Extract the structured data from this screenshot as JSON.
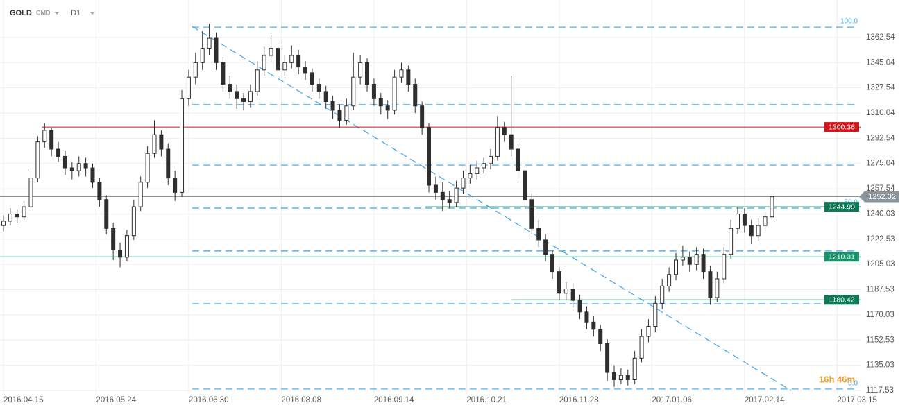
{
  "header": {
    "symbol": "GOLD",
    "market": "CMD",
    "timeframe": "D1"
  },
  "chart_data": {
    "type": "candlestick",
    "candles": [
      [
        1232,
        1239,
        1228,
        1235
      ],
      [
        1235,
        1244,
        1232,
        1240
      ],
      [
        1240,
        1243,
        1234,
        1238
      ],
      [
        1238,
        1249,
        1236,
        1245
      ],
      [
        1245,
        1270,
        1243,
        1265
      ],
      [
        1265,
        1294,
        1262,
        1290
      ],
      [
        1290,
        1303,
        1286,
        1298
      ],
      [
        1298,
        1300,
        1280,
        1285
      ],
      [
        1285,
        1290,
        1276,
        1280
      ],
      [
        1280,
        1284,
        1267,
        1272
      ],
      [
        1272,
        1276,
        1264,
        1270
      ],
      [
        1270,
        1280,
        1266,
        1275
      ],
      [
        1275,
        1279,
        1266,
        1272
      ],
      [
        1272,
        1275,
        1258,
        1262
      ],
      [
        1262,
        1265,
        1245,
        1250
      ],
      [
        1250,
        1253,
        1226,
        1230
      ],
      [
        1230,
        1234,
        1208,
        1215
      ],
      [
        1215,
        1220,
        1203,
        1210
      ],
      [
        1210,
        1229,
        1207,
        1225
      ],
      [
        1225,
        1250,
        1222,
        1245
      ],
      [
        1245,
        1266,
        1242,
        1262
      ],
      [
        1262,
        1287,
        1258,
        1282
      ],
      [
        1282,
        1305,
        1279,
        1295
      ],
      [
        1295,
        1298,
        1280,
        1285
      ],
      [
        1285,
        1289,
        1260,
        1265
      ],
      [
        1265,
        1270,
        1249,
        1255
      ],
      [
        1255,
        1326,
        1252,
        1320
      ],
      [
        1320,
        1340,
        1315,
        1335
      ],
      [
        1335,
        1352,
        1330,
        1345
      ],
      [
        1345,
        1367,
        1340,
        1355
      ],
      [
        1355,
        1372,
        1350,
        1362
      ],
      [
        1362,
        1366,
        1340,
        1345
      ],
      [
        1345,
        1349,
        1325,
        1330
      ],
      [
        1330,
        1336,
        1320,
        1325
      ],
      [
        1325,
        1330,
        1313,
        1320
      ],
      [
        1320,
        1324,
        1312,
        1318
      ],
      [
        1318,
        1330,
        1314,
        1325
      ],
      [
        1325,
        1346,
        1322,
        1340
      ],
      [
        1340,
        1356,
        1336,
        1350
      ],
      [
        1350,
        1364,
        1346,
        1355
      ],
      [
        1355,
        1359,
        1335,
        1340
      ],
      [
        1340,
        1350,
        1336,
        1345
      ],
      [
        1345,
        1357,
        1341,
        1350
      ],
      [
        1350,
        1354,
        1337,
        1342
      ],
      [
        1342,
        1346,
        1333,
        1338
      ],
      [
        1338,
        1341,
        1325,
        1330
      ],
      [
        1330,
        1334,
        1320,
        1325
      ],
      [
        1325,
        1329,
        1313,
        1318
      ],
      [
        1318,
        1322,
        1306,
        1312
      ],
      [
        1312,
        1316,
        1300,
        1305
      ],
      [
        1305,
        1320,
        1302,
        1315
      ],
      [
        1315,
        1352,
        1312,
        1335
      ],
      [
        1335,
        1350,
        1330,
        1345
      ],
      [
        1345,
        1348,
        1325,
        1330
      ],
      [
        1330,
        1334,
        1315,
        1320
      ],
      [
        1320,
        1324,
        1309,
        1315
      ],
      [
        1315,
        1319,
        1306,
        1312
      ],
      [
        1312,
        1340,
        1309,
        1335
      ],
      [
        1335,
        1345,
        1331,
        1340
      ],
      [
        1340,
        1343,
        1325,
        1330
      ],
      [
        1330,
        1334,
        1310,
        1315
      ],
      [
        1315,
        1318,
        1295,
        1300
      ],
      [
        1300,
        1303,
        1255,
        1260
      ],
      [
        1260,
        1266,
        1250,
        1255
      ],
      [
        1255,
        1262,
        1242,
        1250
      ],
      [
        1250,
        1256,
        1244,
        1248
      ],
      [
        1248,
        1263,
        1245,
        1258
      ],
      [
        1258,
        1270,
        1254,
        1265
      ],
      [
        1265,
        1274,
        1261,
        1268
      ],
      [
        1268,
        1277,
        1264,
        1272
      ],
      [
        1272,
        1279,
        1268,
        1275
      ],
      [
        1275,
        1285,
        1271,
        1280
      ],
      [
        1280,
        1308,
        1277,
        1300
      ],
      [
        1300,
        1304,
        1290,
        1295
      ],
      [
        1295,
        1336,
        1280,
        1285
      ],
      [
        1285,
        1289,
        1265,
        1270
      ],
      [
        1270,
        1273,
        1245,
        1250
      ],
      [
        1250,
        1254,
        1226,
        1230
      ],
      [
        1230,
        1236,
        1217,
        1222
      ],
      [
        1222,
        1226,
        1207,
        1212
      ],
      [
        1212,
        1215,
        1195,
        1200
      ],
      [
        1200,
        1203,
        1180,
        1185
      ],
      [
        1185,
        1193,
        1180,
        1188
      ],
      [
        1188,
        1192,
        1175,
        1180
      ],
      [
        1180,
        1184,
        1167,
        1172
      ],
      [
        1172,
        1176,
        1160,
        1165
      ],
      [
        1165,
        1169,
        1155,
        1160
      ],
      [
        1160,
        1163,
        1145,
        1150
      ],
      [
        1150,
        1153,
        1124,
        1130
      ],
      [
        1130,
        1135,
        1120,
        1125
      ],
      [
        1125,
        1133,
        1122,
        1128
      ],
      [
        1128,
        1132,
        1121,
        1125
      ],
      [
        1125,
        1145,
        1122,
        1140
      ],
      [
        1140,
        1160,
        1137,
        1155
      ],
      [
        1155,
        1167,
        1151,
        1162
      ],
      [
        1162,
        1183,
        1158,
        1178
      ],
      [
        1178,
        1195,
        1174,
        1190
      ],
      [
        1190,
        1203,
        1186,
        1198
      ],
      [
        1198,
        1213,
        1194,
        1208
      ],
      [
        1208,
        1218,
        1204,
        1210
      ],
      [
        1210,
        1214,
        1200,
        1205
      ],
      [
        1205,
        1217,
        1201,
        1212
      ],
      [
        1212,
        1216,
        1195,
        1200
      ],
      [
        1200,
        1204,
        1177,
        1182
      ],
      [
        1182,
        1200,
        1179,
        1195
      ],
      [
        1195,
        1217,
        1192,
        1212
      ],
      [
        1212,
        1236,
        1209,
        1230
      ],
      [
        1230,
        1245,
        1226,
        1240
      ],
      [
        1240,
        1244,
        1227,
        1232
      ],
      [
        1232,
        1236,
        1219,
        1225
      ],
      [
        1225,
        1237,
        1221,
        1232
      ],
      [
        1232,
        1242,
        1228,
        1238
      ],
      [
        1238,
        1254,
        1236,
        1252.02
      ]
    ],
    "xlim": [
      -0.5,
      124.9
    ],
    "xticks": [
      {
        "value": 0,
        "label": "2016.04.15"
      },
      {
        "value": 13.5,
        "label": "2016.05.24"
      },
      {
        "value": 27,
        "label": "2016.06.30"
      },
      {
        "value": 40.5,
        "label": "2016.08.08"
      },
      {
        "value": 54,
        "label": "2016.09.14"
      },
      {
        "value": 67.5,
        "label": "2016.10.21"
      },
      {
        "value": 81,
        "label": "2016.11.28"
      },
      {
        "value": 94.5,
        "label": "2017.01.06"
      },
      {
        "value": 108,
        "label": "2017.02.14"
      },
      {
        "value": 121.5,
        "label": "2017.03.15"
      }
    ],
    "ylim": [
      1115.1,
      1388.5
    ],
    "yticks": [
      1117.53,
      1135.03,
      1152.53,
      1170.03,
      1187.53,
      1205.03,
      1222.53,
      1240.03,
      1257.54,
      1275.04,
      1292.54,
      1310.04,
      1327.54,
      1345.04,
      1362.54
    ],
    "grid": true,
    "up_color": "#ffffff",
    "down_color": "#2e2e2e",
    "levels": [
      {
        "value": 1300.36,
        "color": "#d0161b",
        "x_start": 5.6
      },
      {
        "value": 1244.99,
        "color": "#0b7a55",
        "x_start": 61.5
      },
      {
        "value": 1210.31,
        "color": "#17946b",
        "x_start": -0.5
      },
      {
        "value": 1180.42,
        "color": "#0b7a55",
        "x_start": 74
      }
    ],
    "current_price": {
      "value": 1252.02,
      "color": "#8c949b"
    },
    "fibonacci": {
      "color": "#3ba3e6",
      "x_range": [
        27.5,
        124.4
      ],
      "levels": [
        {
          "value": 100,
          "label": "100.0",
          "price": 1369.7
        },
        {
          "value": 78.6,
          "price": 1315.9
        },
        {
          "value": 61.8,
          "price": 1273.9
        },
        {
          "value": 50,
          "label": "50.0",
          "price": 1244.1
        },
        {
          "value": 38.2,
          "price": 1214.3
        },
        {
          "value": 23.6,
          "price": 1177.7
        },
        {
          "value": 0,
          "label": "0.0",
          "price": 1118.5
        }
      ]
    },
    "trendline": {
      "color": "#3ba3e6",
      "points": [
        [
          27.5,
          1370.2
        ],
        [
          114.8,
          1117.5
        ]
      ]
    },
    "timer": "16h 46m"
  }
}
